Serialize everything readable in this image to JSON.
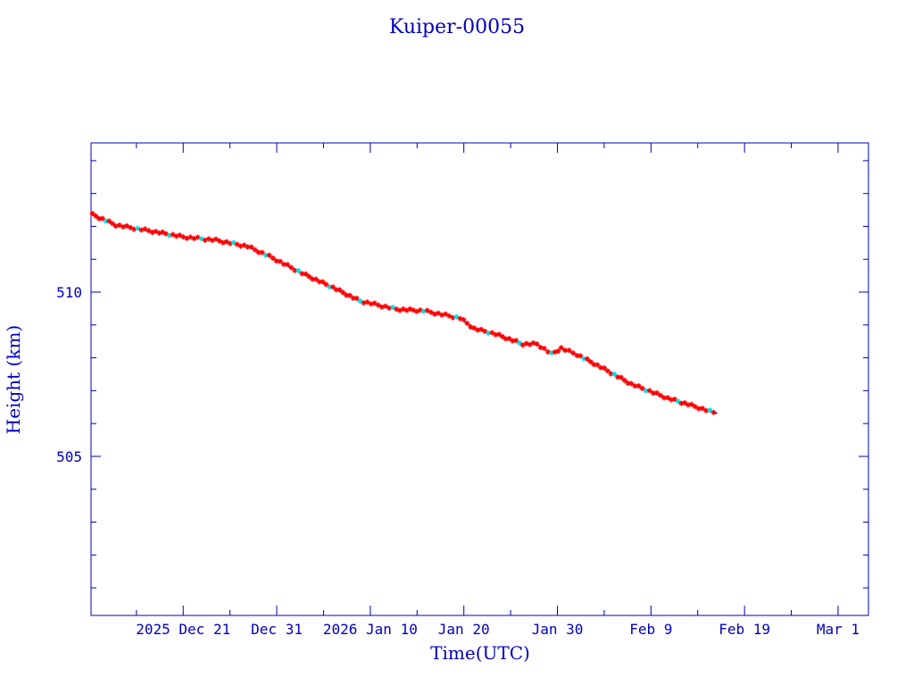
{
  "chart_data": {
    "type": "line",
    "title": "Kuiper-00055",
    "xlabel": "Time(UTC)",
    "ylabel": "Height (km)",
    "x_units": "days since 2025 Dec 21 00:00 UTC",
    "xlim": [
      -9.85,
      73.25
    ],
    "ylim": [
      500.16,
      514.54
    ],
    "grid": false,
    "x_major_step_days": 10,
    "x_minor_step_days": 5,
    "y_major_step": 5,
    "y_minor_step": 1,
    "x_ticks": [
      {
        "day": 0,
        "label": "2025 Dec 21"
      },
      {
        "day": 10,
        "label": "Dec 31"
      },
      {
        "day": 20,
        "label": "2026 Jan 10"
      },
      {
        "day": 30,
        "label": "Jan 20"
      },
      {
        "day": 40,
        "label": "Jan 30"
      },
      {
        "day": 50,
        "label": "Feb  9"
      },
      {
        "day": 60,
        "label": "Feb 19"
      },
      {
        "day": 70,
        "label": "Mar  1"
      }
    ],
    "y_ticks": [
      {
        "value": 505,
        "label": "505"
      },
      {
        "value": 510,
        "label": "510"
      }
    ],
    "series": [
      {
        "name": "height",
        "line_color": "#000080",
        "marker_color": "#ff0000",
        "alt_marker_color": "#00e0e0",
        "points": [
          [
            -9.7,
            512.36
          ],
          [
            -7.2,
            512.04
          ],
          [
            -3.3,
            511.85
          ],
          [
            0.0,
            511.68
          ],
          [
            3.5,
            511.58
          ],
          [
            6.9,
            511.39
          ],
          [
            9.2,
            511.09
          ],
          [
            13.1,
            510.52
          ],
          [
            16.0,
            510.14
          ],
          [
            18.9,
            509.73
          ],
          [
            22.8,
            509.48
          ],
          [
            25.7,
            509.43
          ],
          [
            29.6,
            509.21
          ],
          [
            31.1,
            508.89
          ],
          [
            33.4,
            508.72
          ],
          [
            36.3,
            508.42
          ],
          [
            37.8,
            508.42
          ],
          [
            39.4,
            508.12
          ],
          [
            40.4,
            508.29
          ],
          [
            42.1,
            508.1
          ],
          [
            45.0,
            507.66
          ],
          [
            47.9,
            507.2
          ],
          [
            51.8,
            506.77
          ],
          [
            54.7,
            506.52
          ],
          [
            57.1,
            506.3
          ]
        ]
      }
    ]
  }
}
